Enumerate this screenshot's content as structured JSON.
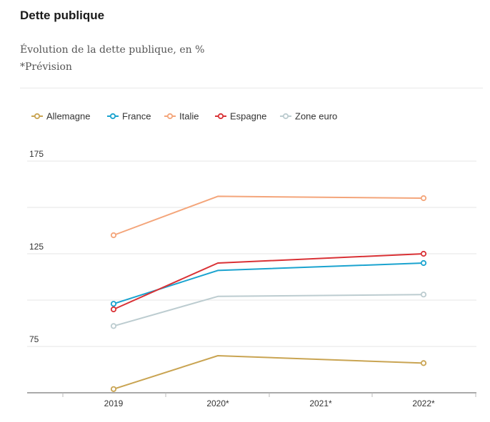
{
  "header": {
    "title": "Dette publique",
    "subtitle": "Évolution de la dette publique, en %",
    "note": "*Prévision"
  },
  "chart_data": {
    "type": "line",
    "categories": [
      "2019",
      "2020*",
      "2021*",
      "2022*"
    ],
    "y_ticks": [
      75,
      125,
      175
    ],
    "ylim": [
      50,
      175
    ],
    "grid": true,
    "legend_position": "top-left",
    "series": [
      {
        "name": "Allemagne",
        "color": "#c9a452",
        "values": [
          52,
          70,
          null,
          66
        ]
      },
      {
        "name": "France",
        "color": "#1aa3cf",
        "values": [
          98,
          116,
          null,
          120
        ]
      },
      {
        "name": "Italie",
        "color": "#f4a57a",
        "values": [
          135,
          156,
          null,
          155
        ]
      },
      {
        "name": "Espagne",
        "color": "#d93135",
        "values": [
          95,
          120,
          null,
          125
        ]
      },
      {
        "name": "Zone euro",
        "color": "#bcccd0",
        "values": [
          86,
          102,
          null,
          103
        ]
      }
    ]
  }
}
